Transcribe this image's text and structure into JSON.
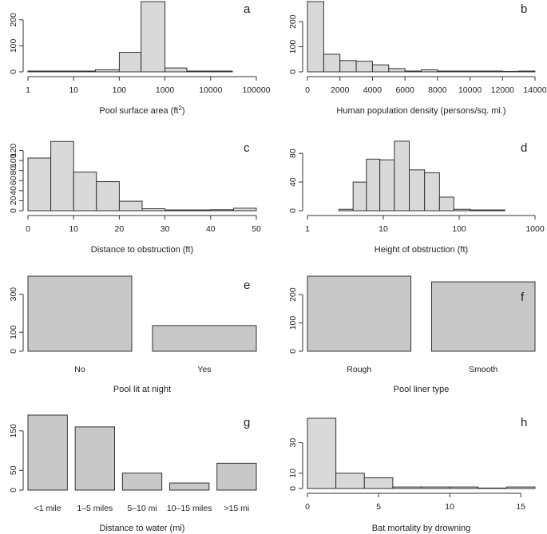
{
  "chart_data": [
    {
      "id": "a",
      "type": "bar",
      "letter": "a",
      "xlabel": "Pool surface area (ft",
      "xlabel_sup": "2",
      "xlabel_end": ")",
      "xscale": "log",
      "xlim": [
        1,
        100000
      ],
      "xticks": [
        1,
        10,
        100,
        1000,
        10000,
        100000
      ],
      "xtick_labels": [
        "1",
        "10",
        "100",
        "1000",
        "10000",
        "100000"
      ],
      "ylim": [
        0,
        270
      ],
      "yticks": [
        0,
        100,
        200
      ],
      "ytick_labels": [
        "0",
        "100",
        "200"
      ],
      "bins": [
        {
          "x0": 1,
          "x1": 10,
          "value": 1
        },
        {
          "x0": 10,
          "x1": 30,
          "value": 3
        },
        {
          "x0": 30,
          "x1": 100,
          "value": 8
        },
        {
          "x0": 100,
          "x1": 300,
          "value": 75
        },
        {
          "x0": 300,
          "x1": 1000,
          "value": 270
        },
        {
          "x0": 1000,
          "x1": 3000,
          "value": 15
        },
        {
          "x0": 3000,
          "x1": 30000,
          "value": 3
        }
      ],
      "fill": "#d9d9d9"
    },
    {
      "id": "b",
      "type": "bar",
      "letter": "b",
      "xlabel": "Human population density (persons/sq. mi.)",
      "xscale": "linear",
      "xlim": [
        0,
        14000
      ],
      "xticks": [
        0,
        2000,
        4000,
        6000,
        8000,
        10000,
        12000,
        14000
      ],
      "xtick_labels": [
        "0",
        "2000",
        "4000",
        "6000",
        "8000",
        "10000",
        "12000",
        "14000"
      ],
      "ylim": [
        0,
        280
      ],
      "yticks": [
        0,
        100,
        200
      ],
      "ytick_labels": [
        "0",
        "100",
        "200"
      ],
      "bins": [
        {
          "x0": 0,
          "x1": 1000,
          "value": 280
        },
        {
          "x0": 1000,
          "x1": 2000,
          "value": 70
        },
        {
          "x0": 2000,
          "x1": 3000,
          "value": 45
        },
        {
          "x0": 3000,
          "x1": 4000,
          "value": 42
        },
        {
          "x0": 4000,
          "x1": 5000,
          "value": 28
        },
        {
          "x0": 5000,
          "x1": 6000,
          "value": 13
        },
        {
          "x0": 6000,
          "x1": 7000,
          "value": 3
        },
        {
          "x0": 7000,
          "x1": 8000,
          "value": 8
        },
        {
          "x0": 8000,
          "x1": 9000,
          "value": 2
        },
        {
          "x0": 9000,
          "x1": 10000,
          "value": 1
        },
        {
          "x0": 10000,
          "x1": 11000,
          "value": 1
        },
        {
          "x0": 11000,
          "x1": 12000,
          "value": 1
        },
        {
          "x0": 12000,
          "x1": 13000,
          "value": 0
        },
        {
          "x0": 13000,
          "x1": 14000,
          "value": 2
        }
      ],
      "fill": "#d9d9d9"
    },
    {
      "id": "c",
      "type": "bar",
      "letter": "c",
      "xlabel": "Distance to obstruction (ft)",
      "xscale": "linear",
      "xlim": [
        0,
        50
      ],
      "xticks": [
        0,
        10,
        20,
        30,
        40,
        50
      ],
      "xtick_labels": [
        "0",
        "10",
        "20",
        "30",
        "40",
        "50"
      ],
      "ylim": [
        0,
        140
      ],
      "yticks": [
        0,
        20,
        40,
        60,
        80,
        100,
        120
      ],
      "ytick_labels": [
        "0",
        "20",
        "40",
        "60",
        "80",
        "100",
        "120"
      ],
      "bins": [
        {
          "x0": 0,
          "x1": 5,
          "value": 105
        },
        {
          "x0": 5,
          "x1": 10,
          "value": 138
        },
        {
          "x0": 10,
          "x1": 15,
          "value": 77
        },
        {
          "x0": 15,
          "x1": 20,
          "value": 58
        },
        {
          "x0": 20,
          "x1": 25,
          "value": 19
        },
        {
          "x0": 25,
          "x1": 30,
          "value": 4
        },
        {
          "x0": 30,
          "x1": 35,
          "value": 1
        },
        {
          "x0": 35,
          "x1": 40,
          "value": 1
        },
        {
          "x0": 40,
          "x1": 45,
          "value": 2
        },
        {
          "x0": 45,
          "x1": 50,
          "value": 5
        }
      ],
      "fill": "#d9d9d9"
    },
    {
      "id": "d",
      "type": "bar",
      "letter": "d",
      "xlabel": "Height of obstruction (ft)",
      "xscale": "log",
      "xlim": [
        1,
        1000
      ],
      "xticks": [
        1,
        10,
        100,
        1000
      ],
      "xtick_labels": [
        "1",
        "10",
        "100",
        "1000"
      ],
      "ylim": [
        0,
        98
      ],
      "yticks": [
        0,
        40,
        80
      ],
      "ytick_labels": [
        "0",
        "40",
        "80"
      ],
      "bins": [
        {
          "x0": 2.6,
          "x1": 4,
          "value": 2
        },
        {
          "x0": 4,
          "x1": 6,
          "value": 40
        },
        {
          "x0": 6,
          "x1": 9,
          "value": 72
        },
        {
          "x0": 9,
          "x1": 14,
          "value": 71
        },
        {
          "x0": 14,
          "x1": 22,
          "value": 97
        },
        {
          "x0": 22,
          "x1": 35,
          "value": 57
        },
        {
          "x0": 35,
          "x1": 55,
          "value": 53
        },
        {
          "x0": 55,
          "x1": 85,
          "value": 19
        },
        {
          "x0": 85,
          "x1": 140,
          "value": 2
        },
        {
          "x0": 140,
          "x1": 400,
          "value": 1
        }
      ],
      "fill": "#d9d9d9"
    },
    {
      "id": "e",
      "type": "bar",
      "letter": "e",
      "xlabel": "Pool lit at night",
      "categories": [
        "No",
        "Yes"
      ],
      "values": [
        395,
        135
      ],
      "ylim": [
        0,
        395
      ],
      "yticks": [
        0,
        100,
        300
      ],
      "ytick_labels": [
        "0",
        "100",
        "300"
      ],
      "fill": "#c8c8c8"
    },
    {
      "id": "f",
      "type": "bar",
      "letter": "f",
      "xlabel": "Pool liner type",
      "categories": [
        "Rough",
        "Smooth"
      ],
      "values": [
        265,
        245
      ],
      "ylim": [
        0,
        265
      ],
      "yticks": [
        0,
        100,
        200
      ],
      "ytick_labels": [
        "0",
        "100",
        "200"
      ],
      "fill": "#c8c8c8"
    },
    {
      "id": "g",
      "type": "bar",
      "letter": "g",
      "xlabel": "Distance to water (mi)",
      "categories": [
        "<1 mile",
        "1–5 miles",
        "5–10 mi",
        "10–15 miles",
        ">15 mi"
      ],
      "values": [
        190,
        160,
        43,
        18,
        68
      ],
      "ylim": [
        0,
        190
      ],
      "yticks": [
        0,
        50,
        150
      ],
      "ytick_labels": [
        "0",
        "50",
        "150"
      ],
      "fill": "#c8c8c8"
    },
    {
      "id": "h",
      "type": "bar",
      "letter": "h",
      "xlabel": "Bat mortality by drowning",
      "xscale": "linear",
      "xlim": [
        0,
        16
      ],
      "xticks": [
        0,
        5,
        10,
        15
      ],
      "xtick_labels": [
        "0",
        "5",
        "10",
        "15"
      ],
      "ylim": [
        0,
        46
      ],
      "yticks": [
        0,
        10,
        30
      ],
      "ytick_labels": [
        "0",
        "10",
        "30"
      ],
      "bins": [
        {
          "x0": 0,
          "x1": 2,
          "value": 46
        },
        {
          "x0": 2,
          "x1": 4,
          "value": 10
        },
        {
          "x0": 4,
          "x1": 6,
          "value": 7
        },
        {
          "x0": 6,
          "x1": 8,
          "value": 1
        },
        {
          "x0": 8,
          "x1": 10,
          "value": 1
        },
        {
          "x0": 10,
          "x1": 12,
          "value": 1
        },
        {
          "x0": 12,
          "x1": 14,
          "value": 0
        },
        {
          "x0": 14,
          "x1": 16,
          "value": 1
        }
      ],
      "fill": "#d9d9d9"
    }
  ]
}
